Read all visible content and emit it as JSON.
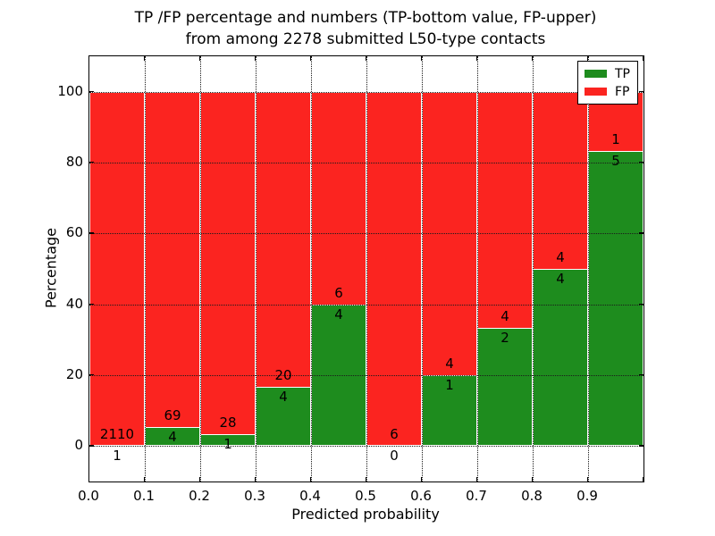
{
  "title": {
    "line1": "TP /FP percentage and numbers (TP-bottom value, FP-upper)",
    "line2": "from among 2278 submitted L50-type contacts"
  },
  "axes": {
    "xlabel": "Predicted probability",
    "ylabel": "Percentage"
  },
  "legend": {
    "position": "upper right",
    "entries": [
      {
        "label": "TP",
        "color": "#1e8c1e"
      },
      {
        "label": "FP",
        "color": "#fb2420"
      }
    ]
  },
  "chart_data": {
    "type": "bar",
    "stacked": true,
    "normalized": "each bin scaled to 100%",
    "title": "TP /FP percentage and numbers (TP-bottom value, FP-upper) from among 2278 submitted L50-type contacts",
    "xlabel": "Predicted probability",
    "ylabel": "Percentage",
    "total_submitted": 2278,
    "bin_edges": [
      0.0,
      0.1,
      0.2,
      0.3,
      0.4,
      0.5,
      0.6,
      0.7,
      0.8,
      0.9,
      1.0
    ],
    "x_tick_labels": [
      "0.0",
      "0.1",
      "0.2",
      "0.3",
      "0.4",
      "0.5",
      "0.6",
      "0.7",
      "0.8",
      "0.9"
    ],
    "y_tick_labels": [
      "0",
      "20",
      "40",
      "60",
      "80",
      "100"
    ],
    "y_grid_values": [
      0,
      20,
      40,
      60,
      80,
      100
    ],
    "xlim": [
      0.0,
      1.0
    ],
    "ylim": [
      -10,
      110
    ],
    "grid": true,
    "legend_position": "upper right",
    "series": [
      {
        "name": "TP",
        "color": "#1e8c1e",
        "counts": [
          1,
          4,
          1,
          4,
          4,
          0,
          1,
          2,
          4,
          5
        ]
      },
      {
        "name": "FP",
        "color": "#fb2420",
        "counts": [
          2110,
          69,
          28,
          20,
          6,
          6,
          4,
          4,
          4,
          1
        ]
      }
    ],
    "tp_percent": [
      0.05,
      5.48,
      3.45,
      16.67,
      40.0,
      0.0,
      20.0,
      33.33,
      50.0,
      83.33
    ]
  }
}
